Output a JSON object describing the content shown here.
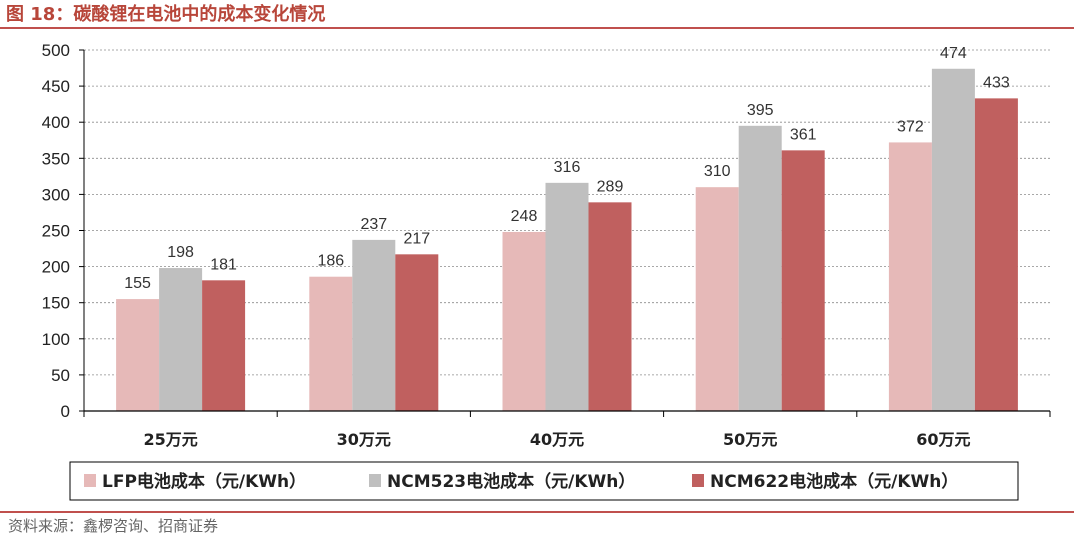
{
  "figure": {
    "title": "图 18：碳酸锂在电池中的成本变化情况",
    "source": "资料来源：鑫椤咨询、招商证券"
  },
  "chart_data": {
    "type": "bar",
    "categories": [
      "25万元",
      "30万元",
      "40万元",
      "50万元",
      "60万元"
    ],
    "series": [
      {
        "name": "LFP电池成本（元/KWh）",
        "values": [
          155,
          186,
          248,
          310,
          372
        ],
        "color": "#e6b9b8"
      },
      {
        "name": "NCM523电池成本（元/KWh）",
        "values": [
          198,
          237,
          316,
          395,
          474
        ],
        "color": "#bfbfbf"
      },
      {
        "name": "NCM622电池成本（元/KWh）",
        "values": [
          181,
          217,
          289,
          361,
          433
        ],
        "color": "#c0605f"
      }
    ],
    "ylim": [
      0,
      500
    ],
    "yticks": [
      0,
      50,
      100,
      150,
      200,
      250,
      300,
      350,
      400,
      450,
      500
    ],
    "grid": true,
    "legend_position": "bottom"
  }
}
